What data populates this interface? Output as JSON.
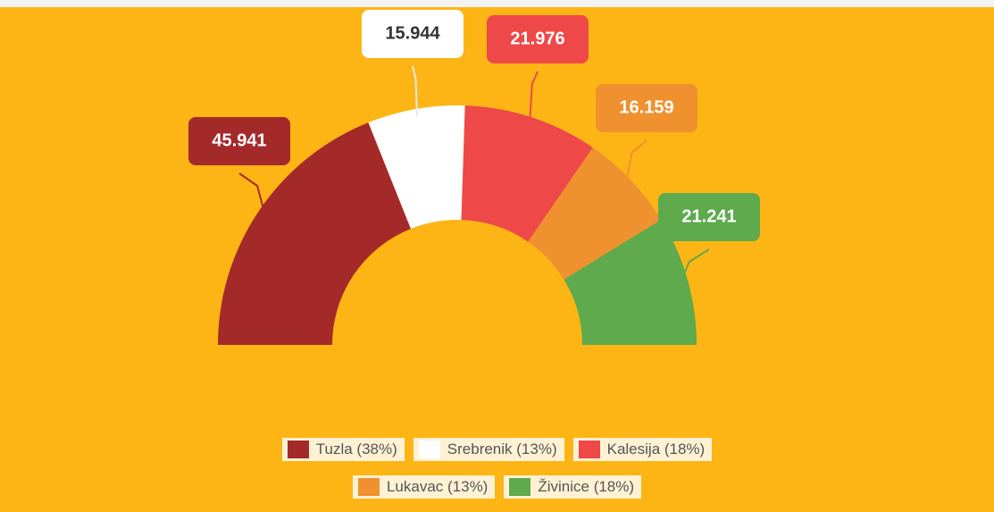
{
  "chart_data": {
    "type": "pie",
    "categories": [
      "Tuzla (38%)",
      "Srebrenik (13%)",
      "Kalesija (18%)",
      "Lukavac (13%)",
      "Živinice (18%)"
    ],
    "values": [
      45941,
      15944,
      21976,
      16159,
      21241
    ],
    "value_labels": [
      "45.941",
      "15.944",
      "21.976",
      "16.159",
      "21.241"
    ],
    "colors": [
      "#A42A2A",
      "#FFFFFF",
      "#EE4848",
      "#EF912F",
      "#5EAA4C"
    ]
  }
}
